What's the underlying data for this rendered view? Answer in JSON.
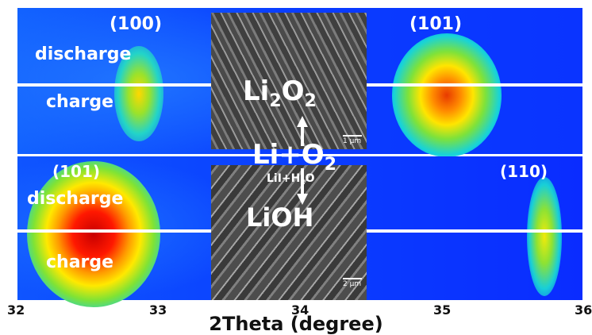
{
  "top_panel": {
    "left_peak_label": "(100)",
    "right_peak_label": "(101)",
    "upper_label": "discharge",
    "lower_label": "charge"
  },
  "bottom_panel": {
    "left_peak_label": "(101)",
    "right_peak_label": "(110)",
    "upper_label": "discharge",
    "lower_label": "charge"
  },
  "center": {
    "top_product": {
      "base": "Li",
      "sub1": "2",
      "mid": "O",
      "sub2": "2"
    },
    "reactant": {
      "base": "Li+O",
      "sub": "2"
    },
    "additive": {
      "base": "LiI+H",
      "sub": "2",
      "tail": "O"
    },
    "bottom_product": "LiOH",
    "top_scale": "1 μm",
    "bottom_scale": "2 μm"
  },
  "x_axis": {
    "title": "2Theta (degree)",
    "ticks": [
      "32",
      "33",
      "34",
      "35",
      "36"
    ],
    "range": [
      32,
      36
    ]
  },
  "colors": {
    "background": "#0a2cff",
    "divider": "#ffffff",
    "peak_hot": "#e00000"
  }
}
